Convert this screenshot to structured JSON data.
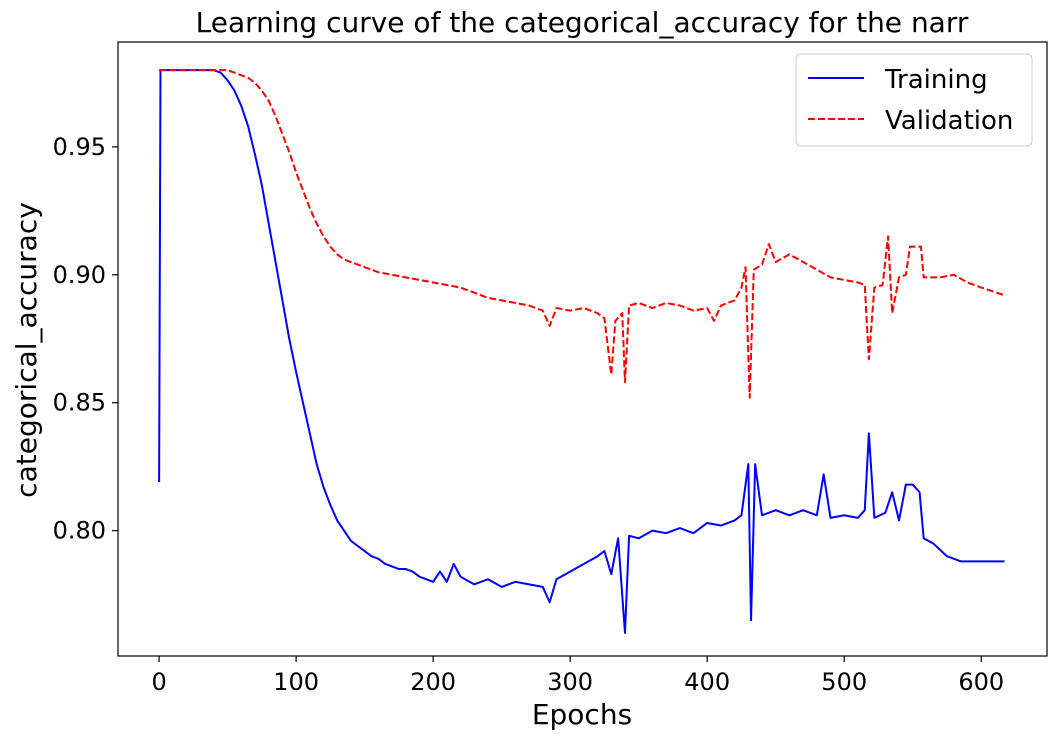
{
  "chart_data": {
    "type": "line",
    "title": "Learning curve of the categorical_accuracy for the narr",
    "xlabel": "Epochs",
    "ylabel": "categorical_accuracy",
    "xlim": [
      -30,
      648
    ],
    "ylim": [
      0.751,
      0.991
    ],
    "xticks": [
      0,
      100,
      200,
      300,
      400,
      500,
      600
    ],
    "yticks": [
      0.8,
      0.85,
      0.9,
      0.95
    ],
    "xtick_labels": [
      "0",
      "100",
      "200",
      "300",
      "400",
      "500",
      "600"
    ],
    "ytick_labels": [
      "0.80",
      "0.85",
      "0.90",
      "0.95"
    ],
    "grid": false,
    "legend": "top-right",
    "series": [
      {
        "name": "Training",
        "color": "#0000ff",
        "style": "solid",
        "points": [
          [
            0,
            0.819
          ],
          [
            1,
            0.98
          ],
          [
            10,
            0.98
          ],
          [
            20,
            0.98
          ],
          [
            30,
            0.98
          ],
          [
            40,
            0.98
          ],
          [
            45,
            0.979
          ],
          [
            50,
            0.976
          ],
          [
            55,
            0.972
          ],
          [
            60,
            0.966
          ],
          [
            65,
            0.958
          ],
          [
            70,
            0.947
          ],
          [
            75,
            0.935
          ],
          [
            80,
            0.92
          ],
          [
            85,
            0.905
          ],
          [
            90,
            0.89
          ],
          [
            95,
            0.875
          ],
          [
            100,
            0.862
          ],
          [
            105,
            0.85
          ],
          [
            110,
            0.838
          ],
          [
            115,
            0.826
          ],
          [
            120,
            0.817
          ],
          [
            125,
            0.81
          ],
          [
            130,
            0.804
          ],
          [
            135,
            0.8
          ],
          [
            140,
            0.796
          ],
          [
            145,
            0.794
          ],
          [
            150,
            0.792
          ],
          [
            155,
            0.79
          ],
          [
            160,
            0.789
          ],
          [
            165,
            0.787
          ],
          [
            170,
            0.786
          ],
          [
            175,
            0.785
          ],
          [
            180,
            0.785
          ],
          [
            185,
            0.784
          ],
          [
            190,
            0.782
          ],
          [
            200,
            0.78
          ],
          [
            205,
            0.784
          ],
          [
            210,
            0.78
          ],
          [
            215,
            0.787
          ],
          [
            220,
            0.782
          ],
          [
            230,
            0.779
          ],
          [
            240,
            0.781
          ],
          [
            250,
            0.778
          ],
          [
            260,
            0.78
          ],
          [
            270,
            0.779
          ],
          [
            280,
            0.778
          ],
          [
            285,
            0.772
          ],
          [
            290,
            0.781
          ],
          [
            300,
            0.784
          ],
          [
            310,
            0.787
          ],
          [
            320,
            0.79
          ],
          [
            325,
            0.792
          ],
          [
            330,
            0.783
          ],
          [
            335,
            0.797
          ],
          [
            340,
            0.76
          ],
          [
            343,
            0.798
          ],
          [
            350,
            0.797
          ],
          [
            360,
            0.8
          ],
          [
            370,
            0.799
          ],
          [
            380,
            0.801
          ],
          [
            390,
            0.799
          ],
          [
            400,
            0.803
          ],
          [
            410,
            0.802
          ],
          [
            420,
            0.804
          ],
          [
            425,
            0.806
          ],
          [
            430,
            0.826
          ],
          [
            432,
            0.765
          ],
          [
            435,
            0.826
          ],
          [
            440,
            0.806
          ],
          [
            450,
            0.808
          ],
          [
            460,
            0.806
          ],
          [
            470,
            0.808
          ],
          [
            480,
            0.806
          ],
          [
            485,
            0.822
          ],
          [
            490,
            0.805
          ],
          [
            500,
            0.806
          ],
          [
            510,
            0.805
          ],
          [
            515,
            0.808
          ],
          [
            518,
            0.838
          ],
          [
            522,
            0.805
          ],
          [
            530,
            0.807
          ],
          [
            535,
            0.815
          ],
          [
            540,
            0.804
          ],
          [
            545,
            0.818
          ],
          [
            550,
            0.818
          ],
          [
            555,
            0.815
          ],
          [
            558,
            0.797
          ],
          [
            565,
            0.795
          ],
          [
            575,
            0.79
          ],
          [
            585,
            0.788
          ],
          [
            600,
            0.788
          ],
          [
            617,
            0.788
          ]
        ]
      },
      {
        "name": "Validation",
        "color": "#ff0000",
        "style": "dashed",
        "points": [
          [
            0,
            0.98
          ],
          [
            10,
            0.98
          ],
          [
            20,
            0.98
          ],
          [
            30,
            0.98
          ],
          [
            40,
            0.98
          ],
          [
            50,
            0.98
          ],
          [
            55,
            0.979
          ],
          [
            60,
            0.978
          ],
          [
            65,
            0.977
          ],
          [
            70,
            0.975
          ],
          [
            75,
            0.972
          ],
          [
            80,
            0.968
          ],
          [
            85,
            0.962
          ],
          [
            90,
            0.955
          ],
          [
            95,
            0.948
          ],
          [
            100,
            0.94
          ],
          [
            105,
            0.933
          ],
          [
            110,
            0.926
          ],
          [
            115,
            0.92
          ],
          [
            120,
            0.915
          ],
          [
            125,
            0.911
          ],
          [
            130,
            0.908
          ],
          [
            135,
            0.906
          ],
          [
            140,
            0.905
          ],
          [
            145,
            0.904
          ],
          [
            150,
            0.903
          ],
          [
            155,
            0.902
          ],
          [
            160,
            0.901
          ],
          [
            170,
            0.9
          ],
          [
            180,
            0.899
          ],
          [
            190,
            0.898
          ],
          [
            200,
            0.897
          ],
          [
            210,
            0.896
          ],
          [
            220,
            0.895
          ],
          [
            230,
            0.893
          ],
          [
            240,
            0.891
          ],
          [
            250,
            0.89
          ],
          [
            260,
            0.889
          ],
          [
            270,
            0.888
          ],
          [
            280,
            0.886
          ],
          [
            285,
            0.88
          ],
          [
            290,
            0.887
          ],
          [
            300,
            0.886
          ],
          [
            310,
            0.887
          ],
          [
            320,
            0.885
          ],
          [
            325,
            0.883
          ],
          [
            330,
            0.861
          ],
          [
            333,
            0.882
          ],
          [
            338,
            0.885
          ],
          [
            340,
            0.858
          ],
          [
            343,
            0.888
          ],
          [
            350,
            0.889
          ],
          [
            360,
            0.887
          ],
          [
            370,
            0.889
          ],
          [
            380,
            0.888
          ],
          [
            390,
            0.886
          ],
          [
            400,
            0.887
          ],
          [
            405,
            0.882
          ],
          [
            410,
            0.888
          ],
          [
            420,
            0.89
          ],
          [
            425,
            0.895
          ],
          [
            428,
            0.903
          ],
          [
            431,
            0.852
          ],
          [
            434,
            0.902
          ],
          [
            440,
            0.904
          ],
          [
            445,
            0.912
          ],
          [
            450,
            0.905
          ],
          [
            460,
            0.908
          ],
          [
            470,
            0.905
          ],
          [
            480,
            0.902
          ],
          [
            490,
            0.899
          ],
          [
            500,
            0.898
          ],
          [
            510,
            0.897
          ],
          [
            515,
            0.896
          ],
          [
            518,
            0.867
          ],
          [
            522,
            0.895
          ],
          [
            528,
            0.896
          ],
          [
            532,
            0.915
          ],
          [
            535,
            0.885
          ],
          [
            540,
            0.899
          ],
          [
            545,
            0.9
          ],
          [
            548,
            0.911
          ],
          [
            556,
            0.911
          ],
          [
            558,
            0.899
          ],
          [
            565,
            0.899
          ],
          [
            570,
            0.899
          ],
          [
            580,
            0.9
          ],
          [
            590,
            0.897
          ],
          [
            600,
            0.895
          ],
          [
            617,
            0.892
          ]
        ]
      }
    ]
  }
}
